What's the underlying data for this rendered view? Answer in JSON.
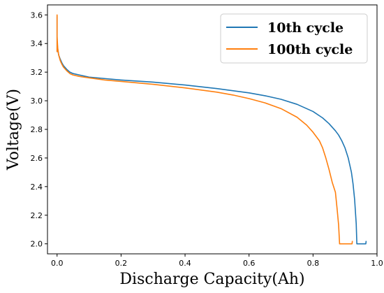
{
  "chart_data": {
    "type": "line",
    "title": "",
    "xlabel": "Discharge Capacity(Ah)",
    "ylabel": "Voltage(V)",
    "xlim": [
      -0.03,
      1.0
    ],
    "ylim": [
      1.93,
      3.67
    ],
    "xticks": [
      0.0,
      0.2,
      0.4,
      0.6,
      0.8,
      1.0
    ],
    "xtick_labels": [
      "0.0",
      "0.2",
      "0.4",
      "0.6",
      "0.8",
      "1.0"
    ],
    "yticks": [
      2.0,
      2.2,
      2.4,
      2.6,
      2.8,
      3.0,
      3.2,
      3.4,
      3.6
    ],
    "ytick_labels": [
      "2.0",
      "2.2",
      "2.4",
      "2.6",
      "2.8",
      "3.0",
      "3.2",
      "3.4",
      "3.6"
    ],
    "grid": false,
    "legend_position": "top-right",
    "series": [
      {
        "name": "10th cycle",
        "color": "#1f77b4",
        "x": [
          0.0,
          0.0,
          0.0,
          0.0,
          0.002,
          0.005,
          0.01,
          0.015,
          0.02,
          0.03,
          0.04,
          0.05,
          0.07,
          0.1,
          0.15,
          0.2,
          0.3,
          0.4,
          0.5,
          0.6,
          0.65,
          0.7,
          0.75,
          0.8,
          0.83,
          0.85,
          0.87,
          0.88,
          0.89,
          0.9,
          0.91,
          0.92,
          0.925,
          0.93,
          0.935,
          0.937,
          0.94,
          0.95,
          0.96,
          0.965,
          0.966
        ],
        "y": [
          3.34,
          3.42,
          3.59,
          3.42,
          3.36,
          3.32,
          3.29,
          3.265,
          3.245,
          3.22,
          3.2,
          3.19,
          3.18,
          3.165,
          3.155,
          3.145,
          3.13,
          3.11,
          3.085,
          3.055,
          3.035,
          3.01,
          2.975,
          2.925,
          2.88,
          2.84,
          2.79,
          2.76,
          2.72,
          2.67,
          2.6,
          2.5,
          2.42,
          2.31,
          2.14,
          2.0,
          2.0,
          2.0,
          2.0,
          2.0,
          2.02
        ]
      },
      {
        "name": "100th cycle",
        "color": "#ff7f0e",
        "x": [
          0.0,
          0.0,
          0.0,
          0.0,
          0.002,
          0.005,
          0.01,
          0.015,
          0.02,
          0.03,
          0.04,
          0.05,
          0.07,
          0.1,
          0.15,
          0.2,
          0.3,
          0.4,
          0.5,
          0.55,
          0.6,
          0.65,
          0.7,
          0.75,
          0.78,
          0.8,
          0.82,
          0.83,
          0.84,
          0.85,
          0.86,
          0.87,
          0.875,
          0.88,
          0.883,
          0.886,
          0.9,
          0.915,
          0.922,
          0.923
        ],
        "y": [
          3.34,
          3.45,
          3.6,
          3.45,
          3.37,
          3.32,
          3.28,
          3.255,
          3.235,
          3.21,
          3.19,
          3.18,
          3.17,
          3.16,
          3.145,
          3.135,
          3.115,
          3.09,
          3.06,
          3.04,
          3.015,
          2.985,
          2.945,
          2.885,
          2.83,
          2.78,
          2.72,
          2.67,
          2.6,
          2.52,
          2.43,
          2.36,
          2.25,
          2.13,
          2.0,
          2.0,
          2.0,
          2.0,
          2.0,
          2.02
        ]
      }
    ]
  }
}
